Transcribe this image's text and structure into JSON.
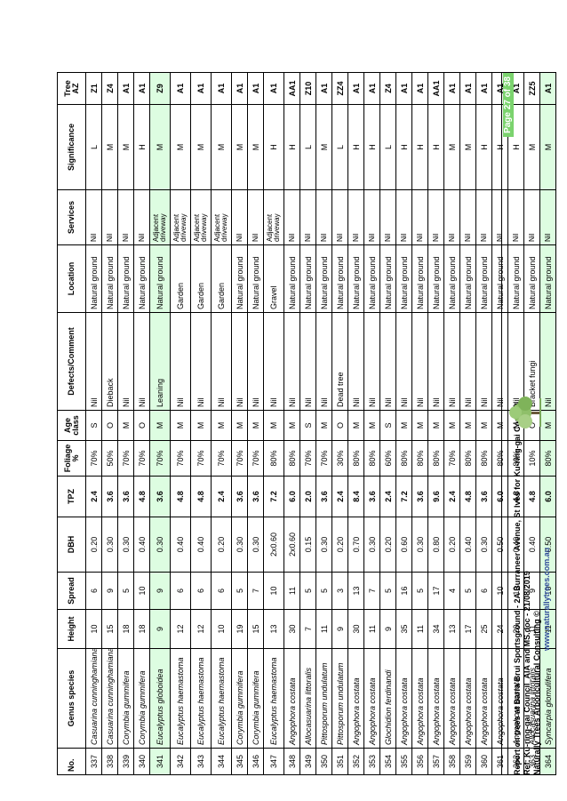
{
  "table": {
    "headers": {
      "no": "No.",
      "species": "Genus species",
      "height": "Height",
      "spread": "Spread",
      "dbh": "DBH",
      "tpz": "TPZ",
      "foliage": "Foliage %",
      "age": "Age class",
      "defects": "Defects/Comment",
      "location": "Location",
      "services": "Services",
      "significance": "Significance",
      "treeaz": "Tree AZ"
    },
    "rows": [
      {
        "no": "337",
        "species": "Casuarina cunninghamiana",
        "height": "10",
        "spread": "6",
        "dbh": "0.20",
        "tpz": "2.4",
        "foliage": "70%",
        "age": "S",
        "defects": "Nil",
        "location": "Natural ground",
        "services": "Nil",
        "significance": "L",
        "treeaz": "Z1",
        "hl": false
      },
      {
        "no": "338",
        "species": "Casuarina cunninghamiana",
        "height": "15",
        "spread": "9",
        "dbh": "0.30",
        "tpz": "3.6",
        "foliage": "50%",
        "age": "O",
        "defects": "Dieback",
        "location": "Natural ground",
        "services": "Nil",
        "significance": "M",
        "treeaz": "Z4",
        "hl": false
      },
      {
        "no": "339",
        "species": "Corymbia gummifera",
        "height": "18",
        "spread": "5",
        "dbh": "0.30",
        "tpz": "3.6",
        "foliage": "70%",
        "age": "M",
        "defects": "Nil",
        "location": "Natural ground",
        "services": "Nil",
        "significance": "M",
        "treeaz": "A1",
        "hl": false
      },
      {
        "no": "340",
        "species": "Corymbia gummifera",
        "height": "18",
        "spread": "10",
        "dbh": "0.40",
        "tpz": "4.8",
        "foliage": "70%",
        "age": "O",
        "defects": "Nil",
        "location": "Natural ground",
        "services": "Nil",
        "significance": "H",
        "treeaz": "A1",
        "hl": false
      },
      {
        "no": "341",
        "species": "Eucalyptus globoidea",
        "height": "9",
        "spread": "9",
        "dbh": "0.30",
        "tpz": "3.6",
        "foliage": "70%",
        "age": "M",
        "defects": "Leaning",
        "location": "Natural ground",
        "services": "Adjacent driveway",
        "significance": "M",
        "treeaz": "Z9",
        "hl": true
      },
      {
        "no": "342",
        "species": "Eucalyptus haemastoma",
        "height": "12",
        "spread": "6",
        "dbh": "0.40",
        "tpz": "4.8",
        "foliage": "70%",
        "age": "M",
        "defects": "Nil",
        "location": "Garden",
        "services": "Adjacent driveway",
        "significance": "M",
        "treeaz": "A1",
        "hl": false
      },
      {
        "no": "343",
        "species": "Eucalyptus haemastoma",
        "height": "12",
        "spread": "6",
        "dbh": "0.40",
        "tpz": "4.8",
        "foliage": "70%",
        "age": "M",
        "defects": "Nil",
        "location": "Garden",
        "services": "Adjacent driveway",
        "significance": "M",
        "treeaz": "A1",
        "hl": false
      },
      {
        "no": "344",
        "species": "Eucalyptus haemastoma",
        "height": "10",
        "spread": "6",
        "dbh": "0.20",
        "tpz": "2.4",
        "foliage": "70%",
        "age": "M",
        "defects": "Nil",
        "location": "Garden",
        "services": "Adjacent driveway",
        "significance": "M",
        "treeaz": "A1",
        "hl": false
      },
      {
        "no": "345",
        "species": "Corymbia gummifera",
        "height": "19",
        "spread": "5",
        "dbh": "0.30",
        "tpz": "3.6",
        "foliage": "70%",
        "age": "M",
        "defects": "Nil",
        "location": "Natural ground",
        "services": "Nil",
        "significance": "M",
        "treeaz": "A1",
        "hl": false
      },
      {
        "no": "346",
        "species": "Corymbia gummifera",
        "height": "15",
        "spread": "7",
        "dbh": "0.30",
        "tpz": "3.6",
        "foliage": "70%",
        "age": "M",
        "defects": "Nil",
        "location": "Natural ground",
        "services": "Nil",
        "significance": "M",
        "treeaz": "A1",
        "hl": false
      },
      {
        "no": "347",
        "species": "Eucalyptus haemastoma",
        "height": "13",
        "spread": "10",
        "dbh": "2x0.60",
        "tpz": "7.2",
        "foliage": "80%",
        "age": "M",
        "defects": "Nil",
        "location": "Gravel",
        "services": "Adjacent driveway",
        "significance": "H",
        "treeaz": "A1",
        "hl": false
      },
      {
        "no": "348",
        "species": "Angophora costata",
        "height": "30",
        "spread": "11",
        "dbh": "2x0.60",
        "tpz": "6.0",
        "foliage": "80%",
        "age": "M",
        "defects": "Nil",
        "location": "Natural ground",
        "services": "Nil",
        "significance": "H",
        "treeaz": "AA1",
        "hl": false
      },
      {
        "no": "349",
        "species": "Allocasuarina littoralis",
        "height": "7",
        "spread": "5",
        "dbh": "0.15",
        "tpz": "2.0",
        "foliage": "70%",
        "age": "S",
        "defects": "Nil",
        "location": "Natural ground",
        "services": "Nil",
        "significance": "L",
        "treeaz": "Z10",
        "hl": false
      },
      {
        "no": "350",
        "species": "Pittosporum undulatum",
        "height": "11",
        "spread": "5",
        "dbh": "0.30",
        "tpz": "3.6",
        "foliage": "70%",
        "age": "M",
        "defects": "Nil",
        "location": "Natural ground",
        "services": "Nil",
        "significance": "M",
        "treeaz": "A1",
        "hl": false
      },
      {
        "no": "351",
        "species": "Pittosporum undulatum",
        "height": "9",
        "spread": "3",
        "dbh": "0.20",
        "tpz": "2.4",
        "foliage": "30%",
        "age": "O",
        "defects": "Dead tree",
        "location": "Natural ground",
        "services": "Nil",
        "significance": "L",
        "treeaz": "ZZ4",
        "hl": false
      },
      {
        "no": "352",
        "species": "Angophora costata",
        "height": "30",
        "spread": "13",
        "dbh": "0.70",
        "tpz": "8.4",
        "foliage": "80%",
        "age": "M",
        "defects": "Nil",
        "location": "Natural ground",
        "services": "Nil",
        "significance": "H",
        "treeaz": "A1",
        "hl": false
      },
      {
        "no": "353",
        "species": "Angophora costata",
        "height": "11",
        "spread": "7",
        "dbh": "0.30",
        "tpz": "3.6",
        "foliage": "80%",
        "age": "M",
        "defects": "Nil",
        "location": "Natural ground",
        "services": "Nil",
        "significance": "H",
        "treeaz": "A1",
        "hl": false
      },
      {
        "no": "354",
        "species": "Glochidion ferdinandi",
        "height": "9",
        "spread": "5",
        "dbh": "0.20",
        "tpz": "2.4",
        "foliage": "60%",
        "age": "S",
        "defects": "Nil",
        "location": "Natural ground",
        "services": "Nil",
        "significance": "L",
        "treeaz": "Z4",
        "hl": false
      },
      {
        "no": "355",
        "species": "Angophora costata",
        "height": "35",
        "spread": "16",
        "dbh": "0.60",
        "tpz": "7.2",
        "foliage": "80%",
        "age": "M",
        "defects": "Nil",
        "location": "Natural ground",
        "services": "Nil",
        "significance": "H",
        "treeaz": "A1",
        "hl": false
      },
      {
        "no": "356",
        "species": "Angophora costata",
        "height": "11",
        "spread": "5",
        "dbh": "0.30",
        "tpz": "3.6",
        "foliage": "80%",
        "age": "M",
        "defects": "Nil",
        "location": "Natural ground",
        "services": "Nil",
        "significance": "H",
        "treeaz": "A1",
        "hl": false
      },
      {
        "no": "357",
        "species": "Angophora costata",
        "height": "34",
        "spread": "17",
        "dbh": "0.80",
        "tpz": "9.6",
        "foliage": "80%",
        "age": "M",
        "defects": "Nil",
        "location": "Natural ground",
        "services": "Nil",
        "significance": "H",
        "treeaz": "AA1",
        "hl": false
      },
      {
        "no": "358",
        "species": "Angophora costata",
        "height": "13",
        "spread": "4",
        "dbh": "0.20",
        "tpz": "2.4",
        "foliage": "70%",
        "age": "M",
        "defects": "Nil",
        "location": "Natural ground",
        "services": "Nil",
        "significance": "M",
        "treeaz": "A1",
        "hl": false
      },
      {
        "no": "359",
        "species": "Angophora costata",
        "height": "17",
        "spread": "5",
        "dbh": "0.40",
        "tpz": "4.8",
        "foliage": "80%",
        "age": "M",
        "defects": "Nil",
        "location": "Natural ground",
        "services": "Nil",
        "significance": "M",
        "treeaz": "A1",
        "hl": false
      },
      {
        "no": "360",
        "species": "Angophora costata",
        "height": "25",
        "spread": "6",
        "dbh": "0.30",
        "tpz": "3.6",
        "foliage": "80%",
        "age": "M",
        "defects": "Nil",
        "location": "Natural ground",
        "services": "Nil",
        "significance": "H",
        "treeaz": "A1",
        "hl": false
      },
      {
        "no": "361",
        "species": "Angophora costata",
        "height": "24",
        "spread": "10",
        "dbh": "0.50",
        "tpz": "6.0",
        "foliage": "80%",
        "age": "M",
        "defects": "Nil",
        "location": "Natural ground",
        "services": "Nil",
        "significance": "H",
        "treeaz": "A1",
        "hl": false
      },
      {
        "no": "362",
        "species": "Angophora costata",
        "height": "20",
        "spread": "10",
        "dbh": "0.40",
        "tpz": "4.8",
        "foliage": "80%",
        "age": "M",
        "defects": "Nil",
        "location": "Natural ground",
        "services": "Nil",
        "significance": "H",
        "treeaz": "A1",
        "hl": false
      },
      {
        "no": "363",
        "species": "Allocasuarina littoralis",
        "height": "11",
        "spread": "9",
        "dbh": "0.40",
        "tpz": "4.8",
        "foliage": "10%",
        "age": "O",
        "defects": "Bracket fungi",
        "location": "Natural ground",
        "services": "Nil",
        "significance": "M",
        "treeaz": "ZZ5",
        "hl": false
      },
      {
        "no": "364",
        "species": "Syncarpia glomulifera",
        "height": "11",
        "spread": "10",
        "dbh": "0.50",
        "tpz": "6.0",
        "foliage": "80%",
        "age": "M",
        "defects": "Nil",
        "location": "Natural ground",
        "services": "Nil",
        "significance": "M",
        "treeaz": "A1",
        "hl": true
      }
    ]
  },
  "footer": {
    "line1": "Report on trees at Barra Brui Sportsground - 2A Burraneer Avenue, St Ives for Ku-ring-gai Council",
    "line2": "Ref: Ku-ring-gai Council_AIA and MS.doc - 21/08/2019",
    "line3": "Naturally Trees Arboricultural Consulting ©",
    "url": "www.naturallytrees.com.au",
    "page": "Page 27 of 38",
    "logo_icon": "tree-logo-icon",
    "colors": {
      "page_badge": "#7bd36e",
      "url": "#2f4a9a",
      "highlight_row": "#ddfde1"
    }
  }
}
